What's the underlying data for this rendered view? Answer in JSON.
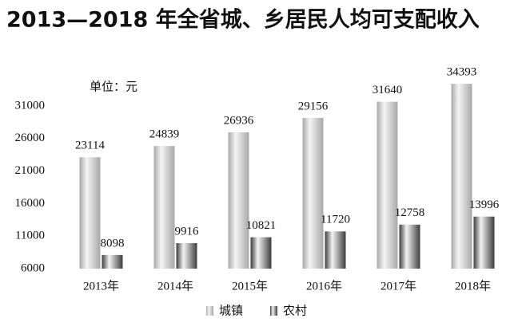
{
  "chart_data": {
    "type": "bar",
    "title": "2013—2018 年全省城、乡居民人均可支配收入",
    "unit": "单位：元",
    "categories": [
      "2013年",
      "2014年",
      "2015年",
      "2016年",
      "2017年",
      "2018年"
    ],
    "series": [
      {
        "name": "城镇",
        "color": "#a8a8a8",
        "values": [
          23114,
          24839,
          26936,
          29156,
          31640,
          34393
        ]
      },
      {
        "name": "农村",
        "color": "#3c3c3c",
        "values": [
          8098,
          9916,
          10821,
          11720,
          12758,
          13996
        ]
      }
    ],
    "ylim": [
      6000,
      36000
    ],
    "yticks": [
      6000,
      11000,
      16000,
      21000,
      26000,
      31000
    ],
    "grid": false
  }
}
